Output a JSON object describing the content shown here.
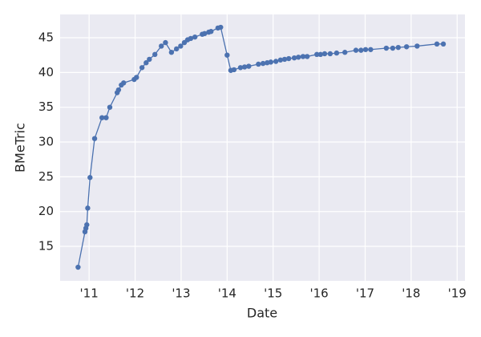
{
  "chart_data": {
    "type": "line",
    "xlabel": "Date",
    "ylabel": "BMeTric",
    "color": "#4c72b0",
    "grid": true,
    "x": [
      2010.76,
      2010.91,
      2010.93,
      2010.95,
      2010.97,
      2011.02,
      2011.12,
      2011.28,
      2011.37,
      2011.45,
      2011.61,
      2011.64,
      2011.7,
      2011.75,
      2011.98,
      2012.03,
      2012.15,
      2012.24,
      2012.31,
      2012.43,
      2012.57,
      2012.66,
      2012.79,
      2012.9,
      2012.99,
      2013.07,
      2013.14,
      2013.21,
      2013.3,
      2013.46,
      2013.51,
      2013.6,
      2013.65,
      2013.8,
      2013.86,
      2014.0,
      2014.08,
      2014.15,
      2014.29,
      2014.38,
      2014.47,
      2014.68,
      2014.78,
      2014.87,
      2014.95,
      2015.06,
      2015.16,
      2015.25,
      2015.34,
      2015.46,
      2015.55,
      2015.65,
      2015.74,
      2015.95,
      2016.03,
      2016.12,
      2016.24,
      2016.38,
      2016.56,
      2016.8,
      2016.91,
      2017.01,
      2017.12,
      2017.46,
      2017.6,
      2017.72,
      2017.9,
      2018.13,
      2018.56,
      2018.7
    ],
    "values": [
      12.0,
      17.1,
      17.6,
      18.1,
      20.5,
      24.9,
      30.5,
      33.5,
      33.5,
      35.0,
      37.1,
      37.5,
      38.2,
      38.5,
      39.0,
      39.3,
      40.7,
      41.4,
      41.9,
      42.6,
      43.8,
      44.3,
      42.9,
      43.4,
      43.8,
      44.3,
      44.7,
      44.9,
      45.1,
      45.5,
      45.6,
      45.8,
      45.9,
      46.4,
      46.5,
      42.5,
      40.3,
      40.4,
      40.7,
      40.8,
      40.9,
      41.2,
      41.3,
      41.4,
      41.5,
      41.6,
      41.8,
      41.9,
      42.0,
      42.1,
      42.2,
      42.3,
      42.3,
      42.6,
      42.6,
      42.7,
      42.7,
      42.8,
      42.9,
      43.2,
      43.2,
      43.3,
      43.3,
      43.5,
      43.5,
      43.6,
      43.7,
      43.8,
      44.1,
      44.1
    ],
    "xlim": [
      2010.37,
      2019.17
    ],
    "ylim": [
      10.04,
      48.35
    ],
    "xticks": [
      {
        "value": 2011,
        "label": "'11"
      },
      {
        "value": 2012,
        "label": "'12"
      },
      {
        "value": 2013,
        "label": "'13"
      },
      {
        "value": 2014,
        "label": "'14"
      },
      {
        "value": 2015,
        "label": "'15"
      },
      {
        "value": 2016,
        "label": "'16"
      },
      {
        "value": 2017,
        "label": "'17"
      },
      {
        "value": 2018,
        "label": "'18"
      },
      {
        "value": 2019,
        "label": "'19"
      }
    ],
    "yticks": [
      15,
      20,
      25,
      30,
      35,
      40,
      45
    ]
  }
}
